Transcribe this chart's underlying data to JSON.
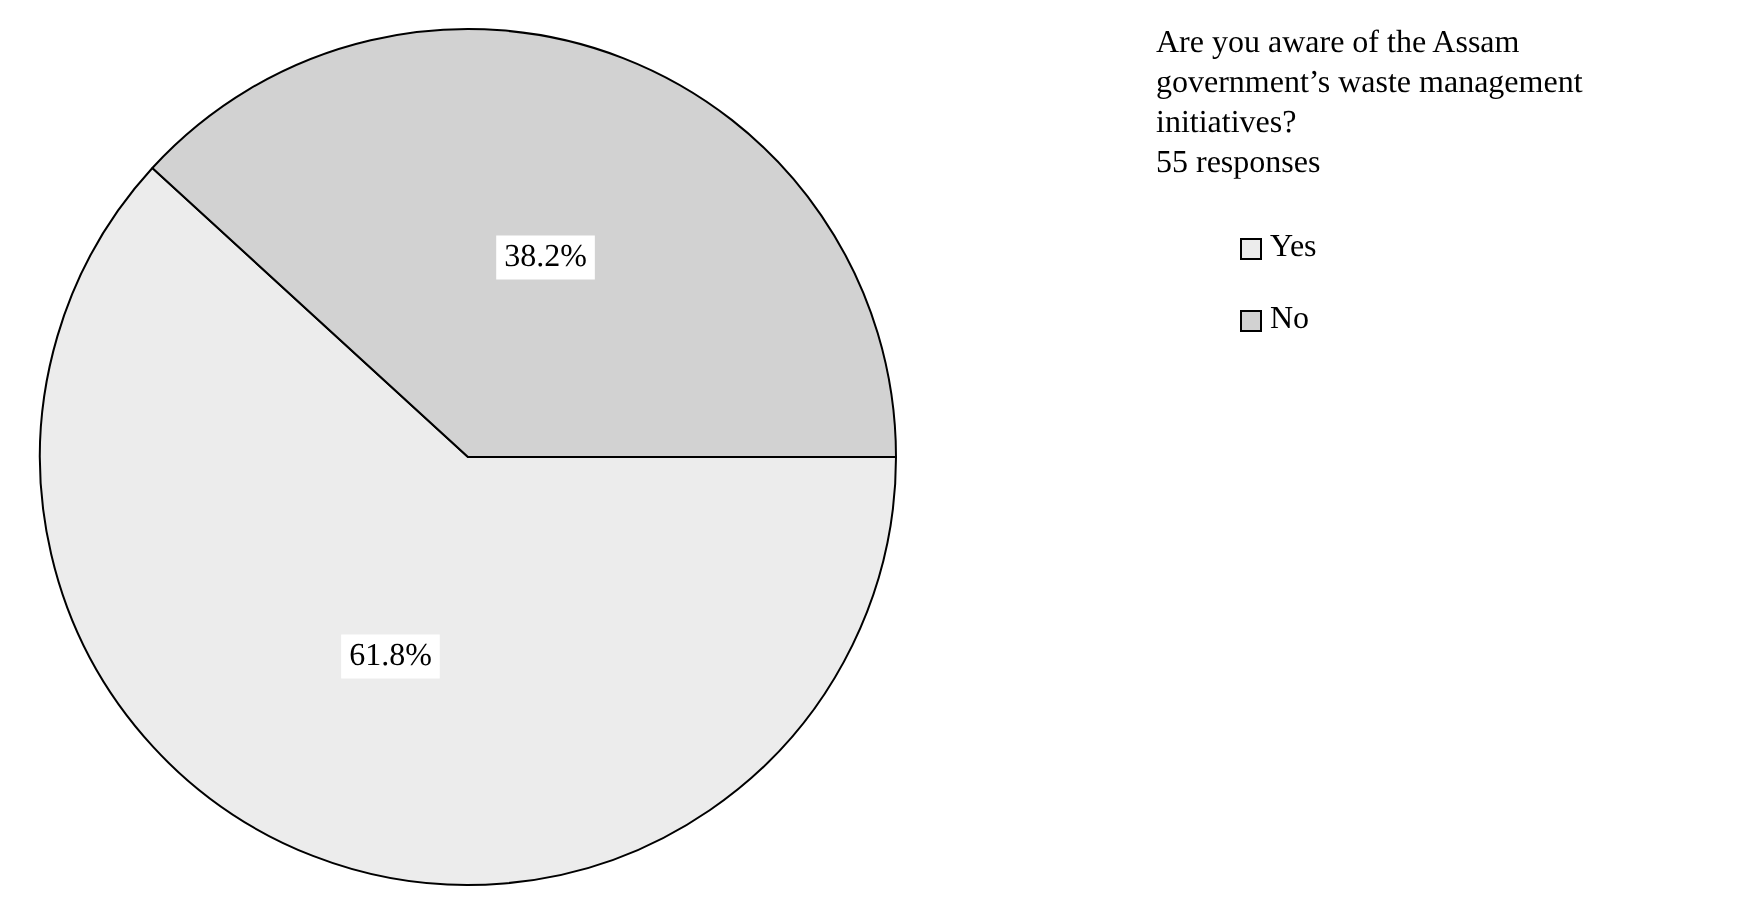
{
  "chart_data": {
    "type": "pie",
    "title": "Are you aware of the Assam government’s waste management initiatives?",
    "subtitle": "55 responses",
    "categories": [
      "Yes",
      "No"
    ],
    "values": [
      61.8,
      38.2
    ],
    "colors": [
      "#ececec",
      "#d2d2d2"
    ],
    "value_labels": [
      "61.8%",
      "38.2%"
    ],
    "legend": "right"
  }
}
